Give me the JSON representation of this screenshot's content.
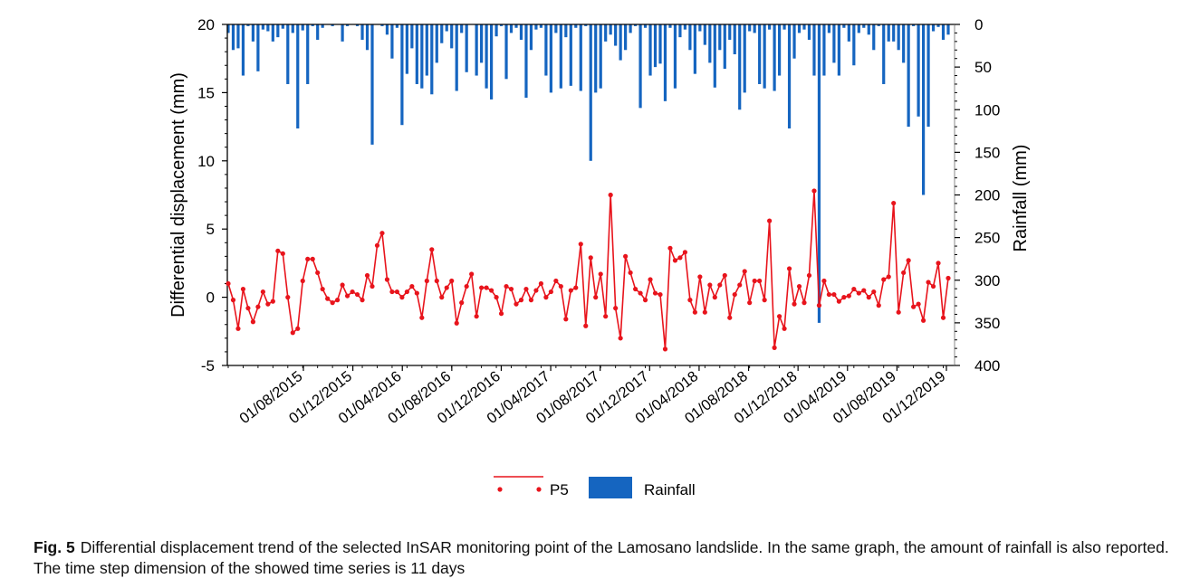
{
  "chart_data": {
    "type": "bar+line",
    "ylabel_left": "Differential displacement (mm)",
    "ylabel_right": "Rainfall (mm)",
    "left_axis": {
      "range": [
        -5,
        20
      ],
      "ticks": [
        "20",
        "15",
        "10",
        "5",
        "0",
        "-5"
      ]
    },
    "right_axis": {
      "range": [
        0,
        400
      ],
      "inverted": true,
      "ticks": [
        "0",
        "50",
        "100",
        "150",
        "200",
        "250",
        "300",
        "350",
        "400"
      ]
    },
    "x_ticks": [
      "01/08/2015",
      "01/12/2015",
      "01/04/2016",
      "01/08/2016",
      "01/12/2016",
      "01/04/2017",
      "01/08/2017",
      "01/12/2017",
      "01/04/2018",
      "01/08/2018",
      "01/12/2018",
      "01/04/2019",
      "01/08/2019",
      "01/12/2019"
    ],
    "time_step_days": 11,
    "num_points": 146,
    "series": [
      {
        "name": "P5",
        "kind": "line",
        "color": "#e8141c",
        "values": [
          1.0,
          -0.2,
          -2.3,
          0.6,
          -0.8,
          -1.8,
          -0.7,
          0.4,
          -0.5,
          -0.3,
          3.4,
          3.2,
          0.0,
          -2.6,
          -2.3,
          1.2,
          2.8,
          2.8,
          1.8,
          0.6,
          -0.1,
          -0.4,
          -0.2,
          0.9,
          0.1,
          0.4,
          0.2,
          -0.2,
          1.6,
          0.8,
          3.8,
          4.7,
          1.3,
          0.4,
          0.4,
          0.0,
          0.4,
          0.8,
          0.3,
          -1.5,
          1.2,
          3.5,
          1.2,
          0.0,
          0.7,
          1.2,
          -1.9,
          -0.4,
          0.8,
          1.7,
          -1.4,
          0.7,
          0.7,
          0.5,
          0.0,
          -1.2,
          0.8,
          0.6,
          -0.5,
          -0.2,
          0.6,
          -0.2,
          0.5,
          1.0,
          0.0,
          0.4,
          1.2,
          0.8,
          -1.6,
          0.5,
          0.7,
          3.9,
          -2.1,
          2.9,
          0.0,
          1.7,
          -1.4,
          7.5,
          -0.8,
          -3.0,
          3.0,
          1.8,
          0.6,
          0.3,
          -0.2,
          1.3,
          0.3,
          0.2,
          -3.8,
          3.6,
          2.7,
          2.9,
          3.3,
          -0.2,
          -1.1,
          1.5,
          -1.1,
          0.9,
          0.0,
          0.9,
          1.6,
          -1.5,
          0.2,
          0.9,
          1.9,
          -0.4,
          1.2,
          1.2,
          -0.2,
          5.6,
          -3.7,
          -1.4,
          -2.3,
          2.1,
          -0.5,
          0.8,
          -0.4,
          1.6,
          7.8,
          -0.6,
          1.2,
          0.2,
          0.2,
          -0.3,
          0.0,
          0.1,
          0.6,
          0.3,
          0.5,
          0.0,
          0.4,
          -0.6,
          1.3,
          1.5,
          6.9,
          -1.1,
          1.8,
          2.7,
          -0.7,
          -0.5,
          -1.7,
          1.1,
          0.8,
          2.5,
          -1.5,
          1.4
        ]
      },
      {
        "name": "Rainfall",
        "kind": "bar",
        "color": "#1565c0",
        "values": [
          10,
          30,
          28,
          60,
          2,
          20,
          55,
          6,
          8,
          20,
          15,
          5,
          70,
          10,
          122,
          7,
          70,
          2,
          18,
          4,
          0,
          2,
          0,
          20,
          2,
          0,
          2,
          18,
          30,
          141,
          0,
          2,
          12,
          40,
          4,
          118,
          58,
          28,
          70,
          75,
          60,
          82,
          45,
          22,
          8,
          28,
          78,
          10,
          56,
          0,
          60,
          45,
          75,
          88,
          14,
          2,
          64,
          10,
          4,
          18,
          86,
          30,
          6,
          4,
          60,
          80,
          10,
          75,
          15,
          72,
          4,
          78,
          2,
          160,
          80,
          75,
          20,
          12,
          25,
          42,
          30,
          10,
          2,
          98,
          4,
          60,
          50,
          46,
          90,
          4,
          75,
          15,
          6,
          30,
          58,
          8,
          24,
          45,
          74,
          30,
          52,
          18,
          35,
          100,
          80,
          8,
          10,
          70,
          75,
          6,
          78,
          60,
          6,
          122,
          40,
          10,
          6,
          18,
          60,
          350,
          60,
          10,
          45,
          60,
          4,
          20,
          48,
          10,
          4,
          12,
          30,
          2,
          70,
          20,
          20,
          30,
          45,
          120,
          2,
          108,
          200,
          120,
          8,
          3,
          18,
          12
        ]
      }
    ],
    "legend": [
      {
        "label": "P5",
        "type": "line-marker"
      },
      {
        "label": "Rainfall",
        "type": "bar"
      }
    ]
  },
  "caption": {
    "label": "Fig. 5",
    "text": "Differential displacement trend of the selected InSAR monitoring point of the Lamosano landslide. In the same graph, the amount of rainfall is also reported. The time step dimension of the showed time series is 11 days"
  }
}
